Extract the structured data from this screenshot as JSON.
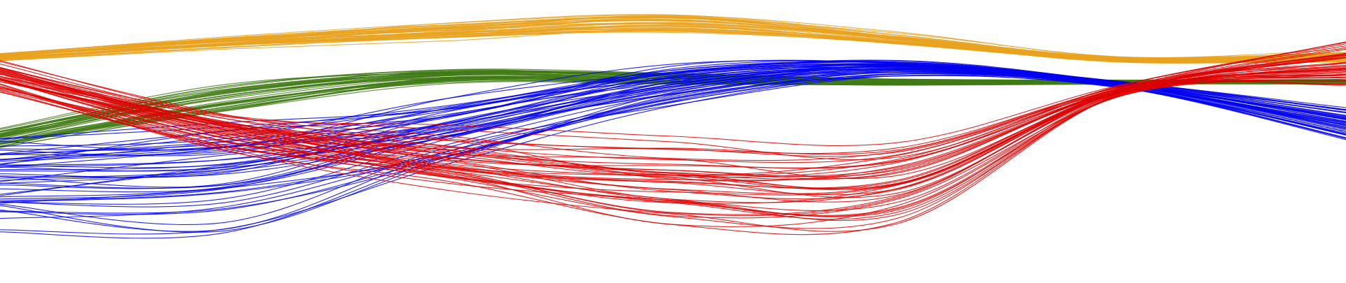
{
  "chart_data": {
    "type": "line",
    "title": "",
    "xlabel": "",
    "ylabel": "",
    "axes_visible": false,
    "grid": false,
    "legend": "none",
    "x": [
      0,
      0.5,
      1,
      1.5,
      2,
      2.5,
      3
    ],
    "xlim": [
      0,
      3
    ],
    "ylim": [
      -2.5,
      2.5
    ],
    "series_groups": [
      {
        "name": "",
        "color": "#e8a21e",
        "line_count": 40,
        "mean": [
          1.5,
          1.75,
          1.95,
          2.1,
          1.8,
          1.45,
          1.5
        ],
        "spread": [
          0.07,
          0.11,
          0.16,
          0.18,
          0.11,
          0.05,
          0.1
        ]
      },
      {
        "name": "",
        "color": "#3f7a14",
        "line_count": 40,
        "mean": [
          0.05,
          0.75,
          1.15,
          1.1,
          1.05,
          1.05,
          1.05
        ],
        "spread": [
          0.14,
          0.2,
          0.1,
          0.08,
          0.05,
          0.03,
          0.03
        ]
      },
      {
        "name": "",
        "color": "#0000ee",
        "line_count": 50,
        "mean": [
          -0.7,
          -0.6,
          0.2,
          1.0,
          1.3,
          1.0,
          0.3
        ],
        "spread": [
          0.7,
          0.8,
          0.5,
          0.3,
          0.12,
          0.05,
          0.25
        ]
      },
      {
        "name": "",
        "color": "#dd0000",
        "line_count": 45,
        "mean": [
          1.15,
          0.2,
          -0.3,
          -0.75,
          -0.7,
          0.9,
          1.35
        ],
        "spread": [
          0.25,
          0.3,
          0.45,
          0.65,
          0.6,
          0.08,
          0.35
        ]
      }
    ]
  }
}
